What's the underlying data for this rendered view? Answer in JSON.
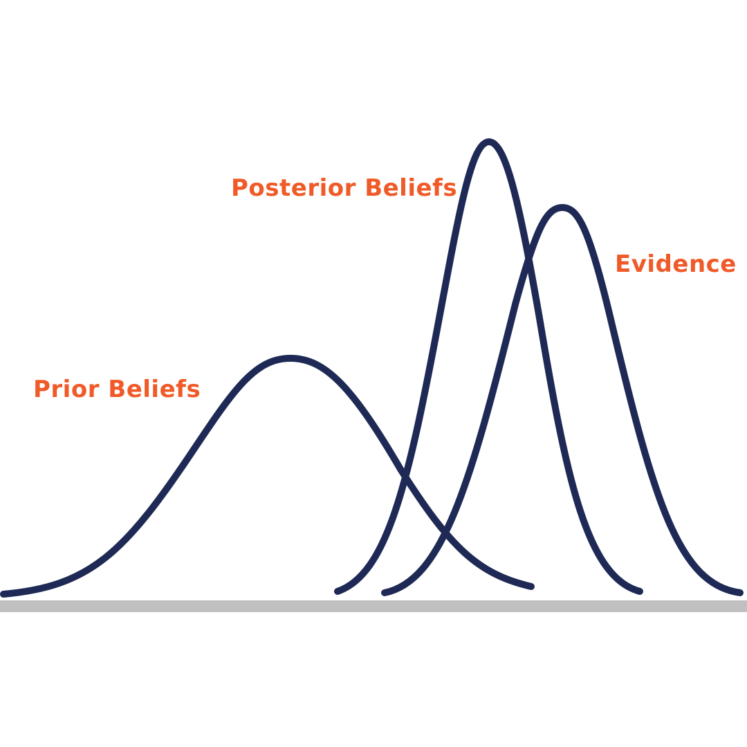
{
  "colors": {
    "curve": "#1e2a55",
    "label": "#f05a28",
    "baseline": "#c1c0c0"
  },
  "labels": {
    "prior": "Prior Beliefs",
    "posterior": "Posterior Beliefs",
    "evidence": "Evidence"
  },
  "chart_data": {
    "type": "line",
    "title": "",
    "xlabel": "",
    "ylabel": "",
    "x_range": [
      0,
      1
    ],
    "y_range": [
      0,
      1
    ],
    "grid": false,
    "axes_ticks": false,
    "series": [
      {
        "name": "Prior Beliefs",
        "peak_x": 0.39,
        "relative_peak_height": 0.51,
        "spread": "wide"
      },
      {
        "name": "Posterior Beliefs",
        "peak_x": 0.65,
        "relative_peak_height": 1.0,
        "spread": "narrow"
      },
      {
        "name": "Evidence",
        "peak_x": 0.75,
        "relative_peak_height": 0.85,
        "spread": "medium"
      }
    ]
  }
}
